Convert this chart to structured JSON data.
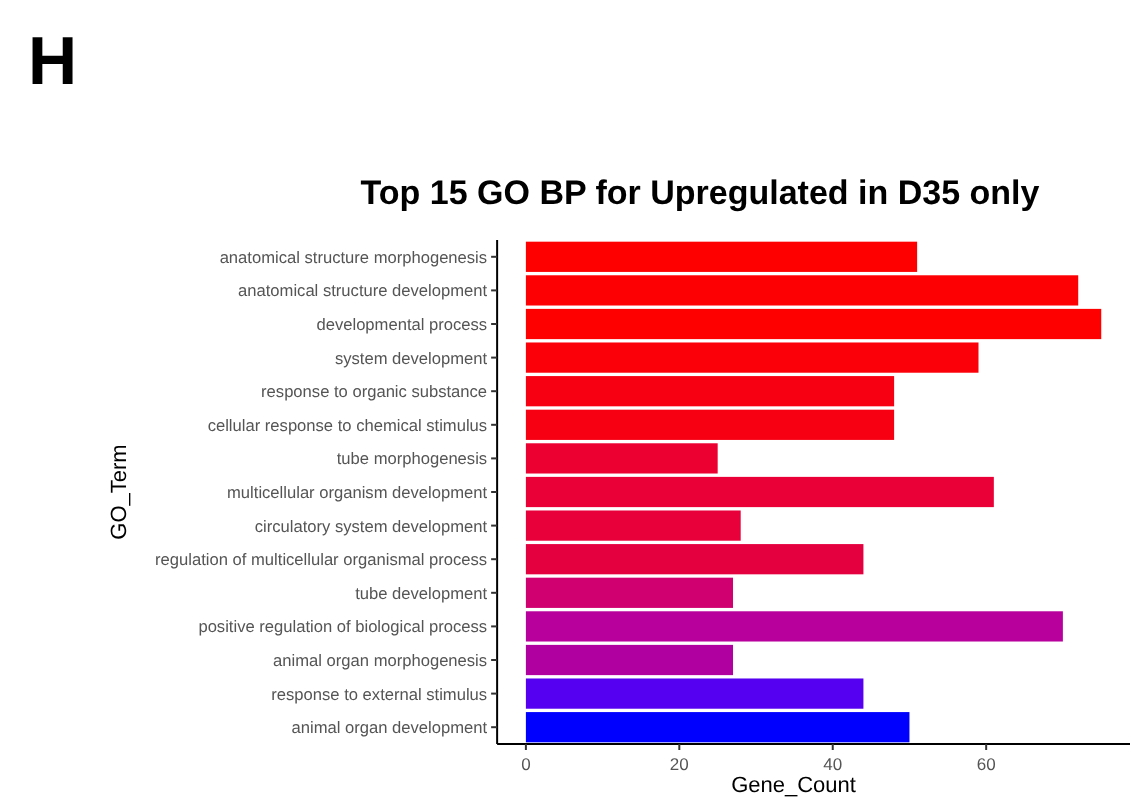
{
  "chart_data": {
    "type": "bar",
    "orientation": "horizontal",
    "title": "Top 15 GO BP for Upregulated in D35 only",
    "xlabel": "Gene_Count",
    "ylabel": "GO_Term",
    "annotations": [
      "H"
    ],
    "categories": [
      "anatomical structure morphogenesis",
      "anatomical structure development",
      "developmental process",
      "system development",
      "response to organic substance",
      "cellular response to chemical stimulus",
      "tube morphogenesis",
      "multicellular organism development",
      "circulatory system development",
      "regulation of multicellular organismal process",
      "tube development",
      "positive regulation of biological process",
      "animal organ morphogenesis",
      "response to external stimulus",
      "animal organ development"
    ],
    "values": [
      51,
      72,
      75,
      59,
      48,
      48,
      25,
      61,
      28,
      44,
      27,
      70,
      27,
      44,
      50
    ],
    "colors": [
      "#fe0000",
      "#fd0004",
      "#fe0000",
      "#fb0008",
      "#f70012",
      "#f70012",
      "#ec0032",
      "#ea0036",
      "#e8003a",
      "#e4003e",
      "#d00070",
      "#b8009c",
      "#b0009f",
      "#5500f0",
      "#0000ff"
    ],
    "xlim": [
      -3.75,
      78.75
    ],
    "xticks": [
      0,
      20,
      40,
      60
    ],
    "grid": false
  }
}
